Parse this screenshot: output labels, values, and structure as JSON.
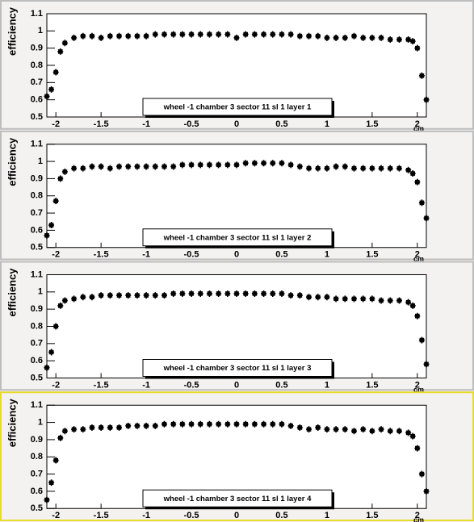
{
  "chart_data": [
    {
      "type": "scatter",
      "title": "wheel -1 chamber 3 sector 11 sl 1 layer 1",
      "x_label": "cm",
      "y_label": "efficiency",
      "color": "#000000",
      "xlim": [
        -2.1,
        2.1
      ],
      "ylim": [
        0.5,
        1.1
      ],
      "xticks": [
        -2,
        -1.5,
        -1,
        -0.5,
        0,
        0.5,
        1,
        1.5,
        2
      ],
      "yticks": [
        0.5,
        0.6,
        0.7,
        0.8,
        0.9,
        1,
        1.1
      ],
      "x": [
        -2.1,
        -2.05,
        -2,
        -1.95,
        -1.9,
        -1.8,
        -1.7,
        -1.6,
        -1.5,
        -1.4,
        -1.3,
        -1.2,
        -1.1,
        -1,
        -0.9,
        -0.8,
        -0.7,
        -0.6,
        -0.5,
        -0.4,
        -0.3,
        -0.2,
        -0.1,
        0,
        0.1,
        0.2,
        0.3,
        0.4,
        0.5,
        0.6,
        0.7,
        0.8,
        0.9,
        1,
        1.1,
        1.2,
        1.3,
        1.4,
        1.5,
        1.6,
        1.7,
        1.8,
        1.9,
        1.95,
        2,
        2.05,
        2.1
      ],
      "values": [
        0.62,
        0.66,
        0.76,
        0.88,
        0.93,
        0.96,
        0.97,
        0.97,
        0.96,
        0.97,
        0.97,
        0.97,
        0.97,
        0.97,
        0.98,
        0.98,
        0.98,
        0.98,
        0.98,
        0.98,
        0.98,
        0.98,
        0.98,
        0.96,
        0.98,
        0.98,
        0.98,
        0.98,
        0.98,
        0.98,
        0.97,
        0.97,
        0.97,
        0.96,
        0.96,
        0.96,
        0.97,
        0.96,
        0.96,
        0.96,
        0.95,
        0.95,
        0.95,
        0.94,
        0.9,
        0.74,
        0.6
      ]
    },
    {
      "type": "scatter",
      "title": "wheel -1 chamber 3 sector 11 sl 1 layer 2",
      "x_label": "cm",
      "y_label": "efficiency",
      "color": "#000000",
      "xlim": [
        -2.1,
        2.1
      ],
      "ylim": [
        0.5,
        1.1
      ],
      "xticks": [
        -2,
        -1.5,
        -1,
        -0.5,
        0,
        0.5,
        1,
        1.5,
        2
      ],
      "yticks": [
        0.5,
        0.6,
        0.7,
        0.8,
        0.9,
        1,
        1.1
      ],
      "x": [
        -2.1,
        -2.05,
        -2,
        -1.95,
        -1.9,
        -1.8,
        -1.7,
        -1.6,
        -1.5,
        -1.4,
        -1.3,
        -1.2,
        -1.1,
        -1,
        -0.9,
        -0.8,
        -0.7,
        -0.6,
        -0.5,
        -0.4,
        -0.3,
        -0.2,
        -0.1,
        0,
        0.1,
        0.2,
        0.3,
        0.4,
        0.5,
        0.6,
        0.7,
        0.8,
        0.9,
        1,
        1.1,
        1.2,
        1.3,
        1.4,
        1.5,
        1.6,
        1.7,
        1.8,
        1.9,
        1.95,
        2,
        2.05,
        2.1
      ],
      "values": [
        0.57,
        0.63,
        0.77,
        0.9,
        0.94,
        0.96,
        0.96,
        0.97,
        0.97,
        0.96,
        0.97,
        0.97,
        0.97,
        0.97,
        0.97,
        0.97,
        0.97,
        0.98,
        0.98,
        0.98,
        0.98,
        0.98,
        0.98,
        0.98,
        0.99,
        0.99,
        0.99,
        0.99,
        0.99,
        0.98,
        0.97,
        0.96,
        0.96,
        0.96,
        0.97,
        0.97,
        0.96,
        0.96,
        0.96,
        0.96,
        0.96,
        0.96,
        0.95,
        0.93,
        0.88,
        0.76,
        0.67
      ]
    },
    {
      "type": "scatter",
      "title": "wheel -1 chamber 3 sector 11 sl 1 layer 3",
      "x_label": "cm",
      "y_label": "efficiency",
      "color": "#000000",
      "xlim": [
        -2.1,
        2.1
      ],
      "ylim": [
        0.5,
        1.1
      ],
      "xticks": [
        -2,
        -1.5,
        -1,
        -0.5,
        0,
        0.5,
        1,
        1.5,
        2
      ],
      "yticks": [
        0.5,
        0.6,
        0.7,
        0.8,
        0.9,
        1,
        1.1
      ],
      "x": [
        -2.1,
        -2.05,
        -2,
        -1.95,
        -1.9,
        -1.8,
        -1.7,
        -1.6,
        -1.5,
        -1.4,
        -1.3,
        -1.2,
        -1.1,
        -1,
        -0.9,
        -0.8,
        -0.7,
        -0.6,
        -0.5,
        -0.4,
        -0.3,
        -0.2,
        -0.1,
        0,
        0.1,
        0.2,
        0.3,
        0.4,
        0.5,
        0.6,
        0.7,
        0.8,
        0.9,
        1,
        1.1,
        1.2,
        1.3,
        1.4,
        1.5,
        1.6,
        1.7,
        1.8,
        1.9,
        1.95,
        2,
        2.05,
        2.1
      ],
      "values": [
        0.56,
        0.65,
        0.8,
        0.92,
        0.95,
        0.96,
        0.97,
        0.97,
        0.98,
        0.98,
        0.98,
        0.98,
        0.98,
        0.98,
        0.98,
        0.98,
        0.99,
        0.99,
        0.99,
        0.99,
        0.99,
        0.99,
        0.99,
        0.99,
        0.99,
        0.99,
        0.99,
        0.99,
        0.99,
        0.98,
        0.98,
        0.97,
        0.97,
        0.97,
        0.96,
        0.96,
        0.96,
        0.96,
        0.96,
        0.95,
        0.95,
        0.95,
        0.94,
        0.92,
        0.86,
        0.72,
        0.58
      ]
    },
    {
      "type": "scatter",
      "title": "wheel -1 chamber 3 sector 11 sl 1 layer 4",
      "x_label": "cm",
      "y_label": "efficiency",
      "color": "#000000",
      "xlim": [
        -2.1,
        2.1
      ],
      "ylim": [
        0.5,
        1.1
      ],
      "xticks": [
        -2,
        -1.5,
        -1,
        -0.5,
        0,
        0.5,
        1,
        1.5,
        2
      ],
      "yticks": [
        0.5,
        0.6,
        0.7,
        0.8,
        0.9,
        1,
        1.1
      ],
      "x": [
        -2.1,
        -2.05,
        -2,
        -1.95,
        -1.9,
        -1.8,
        -1.7,
        -1.6,
        -1.5,
        -1.4,
        -1.3,
        -1.2,
        -1.1,
        -1,
        -0.9,
        -0.8,
        -0.7,
        -0.6,
        -0.5,
        -0.4,
        -0.3,
        -0.2,
        -0.1,
        0,
        0.1,
        0.2,
        0.3,
        0.4,
        0.5,
        0.6,
        0.7,
        0.8,
        0.9,
        1,
        1.1,
        1.2,
        1.3,
        1.4,
        1.5,
        1.6,
        1.7,
        1.8,
        1.9,
        1.95,
        2,
        2.05,
        2.1
      ],
      "values": [
        0.55,
        0.65,
        0.78,
        0.91,
        0.95,
        0.96,
        0.96,
        0.97,
        0.97,
        0.97,
        0.97,
        0.98,
        0.98,
        0.98,
        0.98,
        0.99,
        0.99,
        0.99,
        0.99,
        0.99,
        0.99,
        0.99,
        0.99,
        0.99,
        0.99,
        0.99,
        0.99,
        0.99,
        0.99,
        0.98,
        0.97,
        0.96,
        0.97,
        0.96,
        0.96,
        0.96,
        0.95,
        0.96,
        0.95,
        0.96,
        0.95,
        0.95,
        0.94,
        0.92,
        0.85,
        0.7,
        0.6
      ]
    }
  ]
}
